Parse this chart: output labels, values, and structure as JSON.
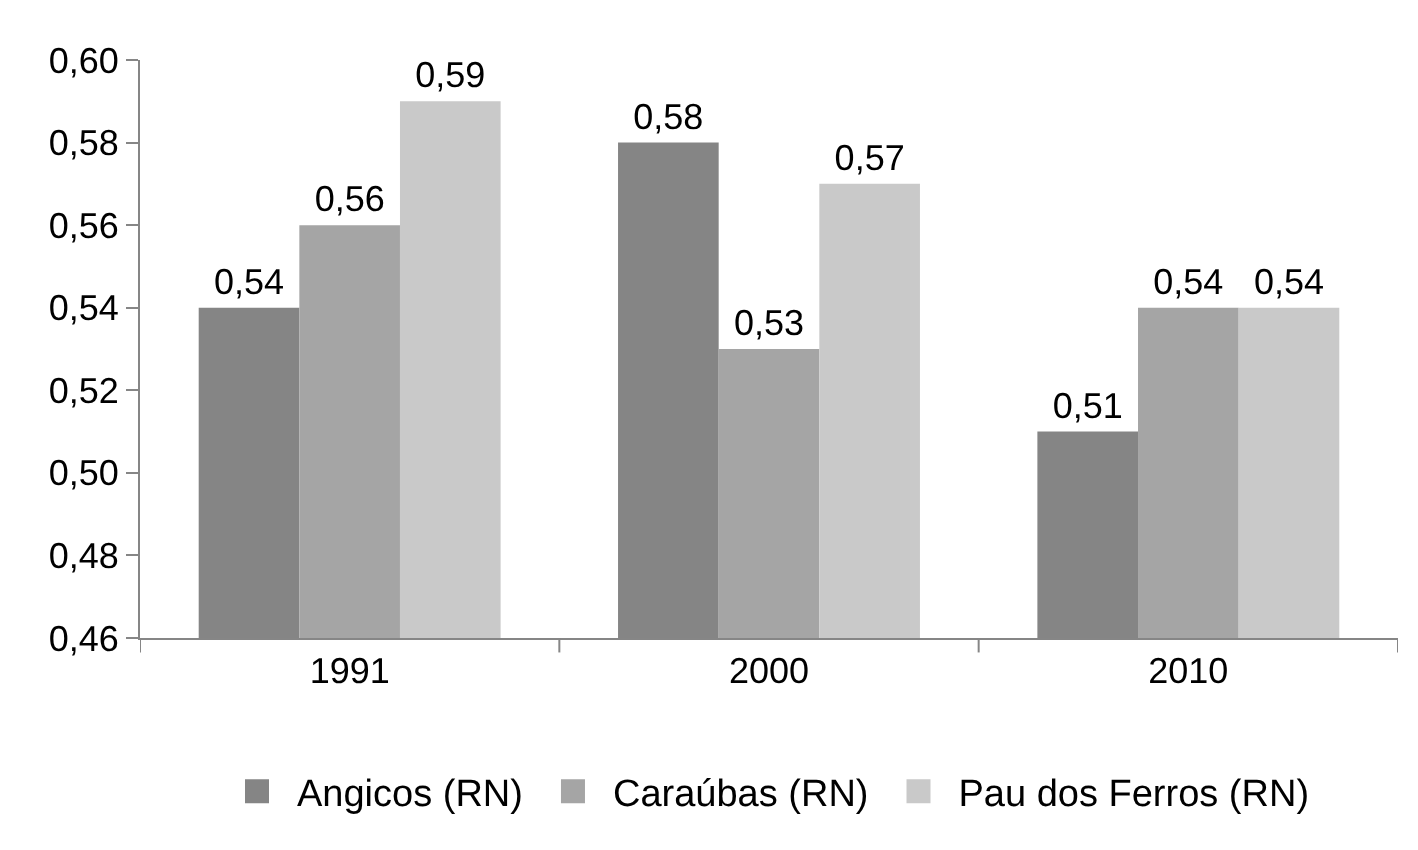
{
  "chart_data": {
    "type": "bar",
    "categories": [
      "1991",
      "2000",
      "2010"
    ],
    "series": [
      {
        "name": "Angicos (RN)",
        "color": "#858585",
        "values": [
          0.54,
          0.58,
          0.51
        ],
        "value_labels": [
          "0,54",
          "0,58",
          "0,51"
        ]
      },
      {
        "name": "Caraúbas (RN)",
        "color": "#a5a5a5",
        "values": [
          0.56,
          0.53,
          0.54
        ],
        "value_labels": [
          "0,56",
          "0,53",
          "0,54"
        ]
      },
      {
        "name": "Pau dos Ferros (RN)",
        "color": "#c9c9c9",
        "values": [
          0.59,
          0.57,
          0.54
        ],
        "value_labels": [
          "0,59",
          "0,57",
          "0,54"
        ]
      }
    ],
    "ylim": [
      0.46,
      0.6
    ],
    "yticks": [
      {
        "value": 0.46,
        "label": "0,46"
      },
      {
        "value": 0.48,
        "label": "0,48"
      },
      {
        "value": 0.5,
        "label": "0,50"
      },
      {
        "value": 0.52,
        "label": "0,52"
      },
      {
        "value": 0.54,
        "label": "0,54"
      },
      {
        "value": 0.56,
        "label": "0,56"
      },
      {
        "value": 0.58,
        "label": "0,58"
      },
      {
        "value": 0.6,
        "label": "0,60"
      }
    ],
    "legend": "bottom"
  }
}
